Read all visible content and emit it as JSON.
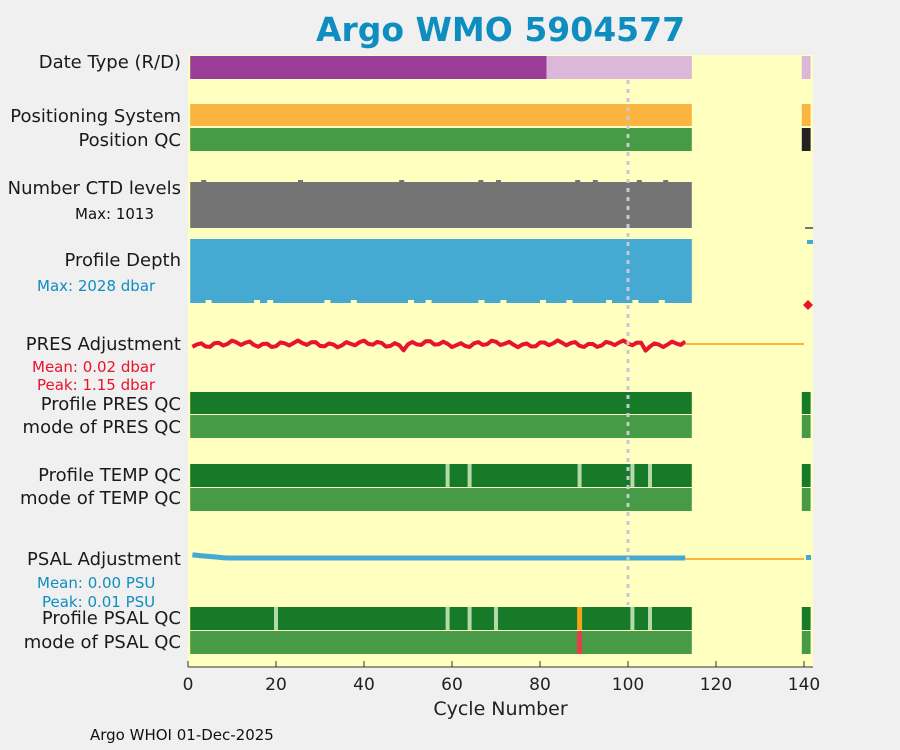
{
  "chart_data": {
    "type": "table",
    "title": "Argo WMO 5904577",
    "xlabel": "Cycle Number",
    "xlim": [
      0,
      142
    ],
    "xticks": [
      "0",
      "20",
      "40",
      "60",
      "80",
      "100",
      "120",
      "140"
    ],
    "footer": "Argo WHOI 01-Dec-2025",
    "reference_cycle": 100,
    "colors": {
      "background": "#ffffc0",
      "delayed": "#9a3d98",
      "realtime": "#dbb7da",
      "positioning": "#fbb440",
      "qc_good": "#167a28",
      "qc_mode": "#479a46",
      "qc_light": "#b5d9a8",
      "qc_warn": "#f6a21c",
      "qc_bad": "#ea3b4a",
      "levels": "#747474",
      "depth": "#45a9d1",
      "pres": "#e8132d",
      "psal": "#45a9d1",
      "title": "#0e8ec0"
    },
    "rows": {
      "date_type": {
        "label": "Date Type (R/D)",
        "segments": [
          {
            "start": 1,
            "end": 81,
            "value": "D"
          },
          {
            "start": 82,
            "end": 114,
            "value": "R"
          },
          {
            "start": 140,
            "end": 141,
            "value": "R"
          }
        ]
      },
      "positioning_system": {
        "label": "Positioning System",
        "segments": [
          {
            "start": 1,
            "end": 114
          },
          {
            "start": 140,
            "end": 141
          }
        ]
      },
      "position_qc": {
        "label": "Position QC",
        "segments": [
          {
            "start": 1,
            "end": 114,
            "value": "good"
          },
          {
            "start": 140,
            "end": 141,
            "value": "missing"
          }
        ]
      },
      "ctd_levels": {
        "label": "Number CTD levels",
        "max_label": "Max: 1013",
        "max": 1013,
        "typical": 1000,
        "start": 1,
        "end": 114
      },
      "profile_depth": {
        "label": "Profile Depth",
        "max_label": "Max: 2028 dbar",
        "max": 2028,
        "typical": 2000,
        "start": 1,
        "end": 114
      },
      "pres_adjustment": {
        "label": "PRES Adjustment",
        "mean_label": "Mean: 0.02 dbar",
        "peak_label": "Peak: 1.15 dbar",
        "mean": 0.02,
        "peak": 1.15,
        "start": 1,
        "end": 113,
        "line_end": 140
      },
      "profile_pres_qc": {
        "label": "Profile PRES QC",
        "segments": [
          {
            "start": 1,
            "end": 114
          },
          {
            "start": 140,
            "end": 141
          }
        ]
      },
      "mode_pres_qc": {
        "label": "mode of PRES QC",
        "segments": [
          {
            "start": 1,
            "end": 114
          },
          {
            "start": 140,
            "end": 141
          }
        ]
      },
      "profile_temp_qc": {
        "label": "Profile TEMP QC",
        "light_cycles": [
          59,
          64,
          89,
          101,
          105
        ]
      },
      "mode_temp_qc": {
        "label": "mode of TEMP QC"
      },
      "psal_adjustment": {
        "label": "PSAL Adjustment",
        "mean_label": "Mean: 0.00 PSU",
        "peak_label": "Peak: 0.01 PSU",
        "mean": 0.0,
        "peak": 0.01,
        "start": 1,
        "end": 113,
        "line_end": 140
      },
      "profile_psal_qc": {
        "label": "Profile PSAL QC",
        "light_cycles": [
          20,
          59,
          64,
          70,
          101,
          105
        ],
        "warn_cycles": [
          89
        ]
      },
      "mode_psal_qc": {
        "label": "mode of PSAL QC",
        "bad_cycles": [
          89
        ]
      }
    }
  }
}
